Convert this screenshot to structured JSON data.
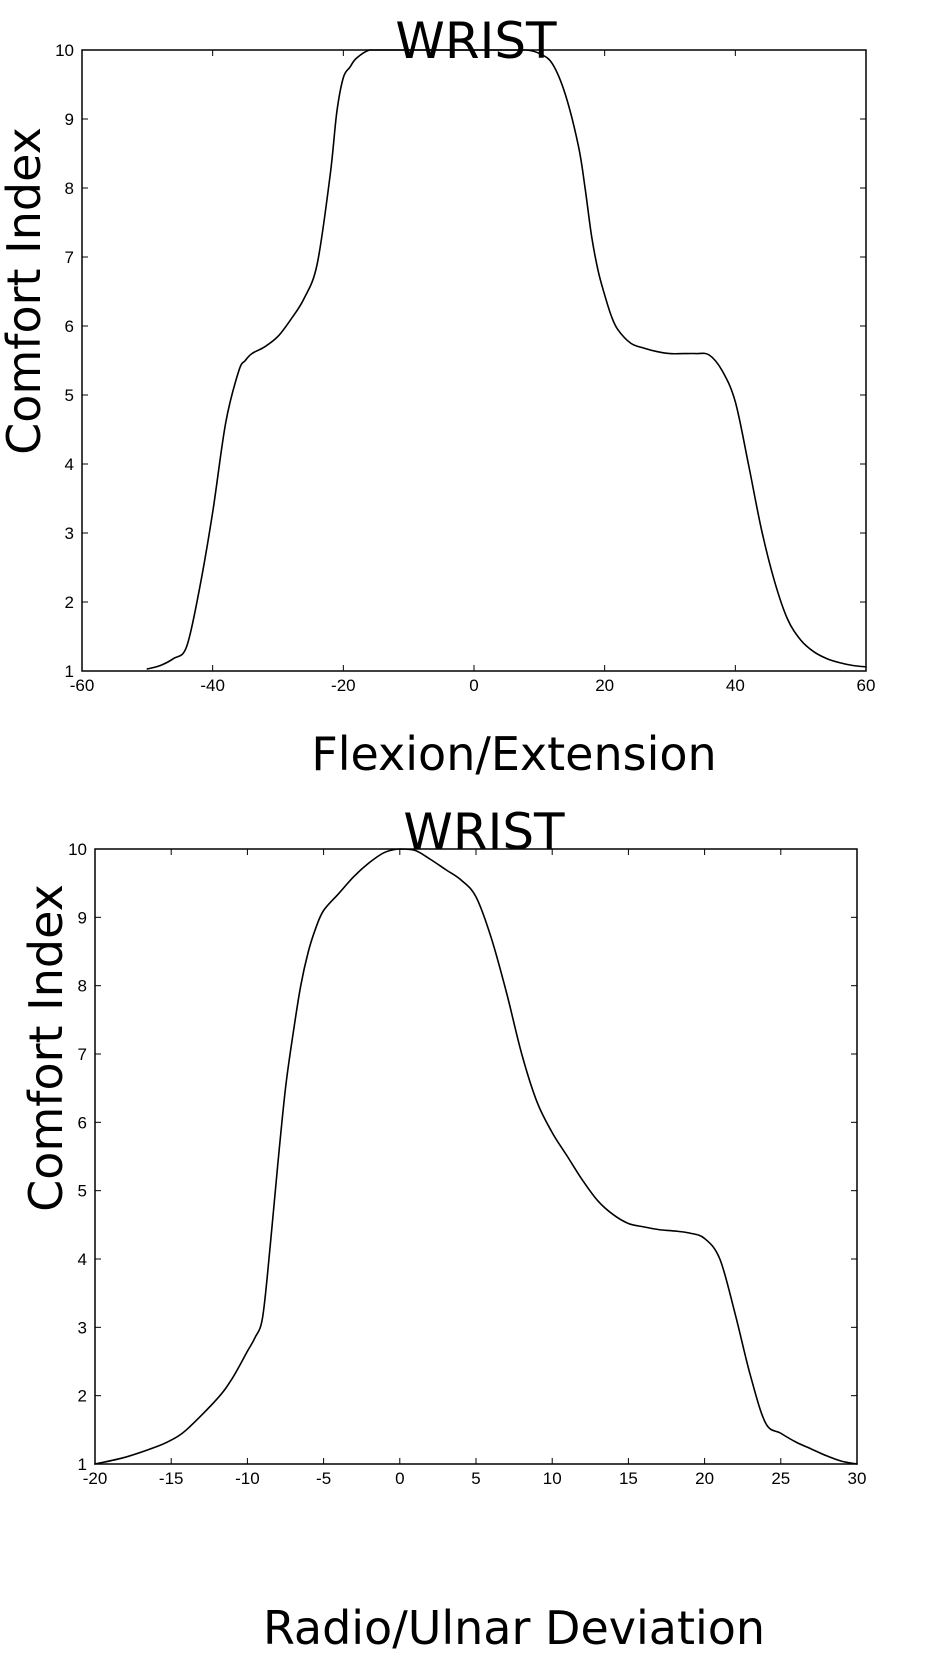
{
  "chart_data": [
    {
      "type": "line",
      "title": "WRIST",
      "xlabel": "Flexion/Extension",
      "ylabel": "Comfort Index",
      "xlim": [
        -60,
        60
      ],
      "ylim": [
        1,
        10
      ],
      "xticks": [
        -60,
        -40,
        -20,
        0,
        20,
        40,
        60
      ],
      "yticks": [
        1,
        2,
        3,
        4,
        5,
        6,
        7,
        8,
        9,
        10
      ],
      "grid": false,
      "line_color": "#000000",
      "series": [
        {
          "x": [
            -50,
            -48,
            -46,
            -44,
            -42,
            -40,
            -38,
            -36,
            -35,
            -34,
            -32,
            -30,
            -28,
            -26,
            -24,
            -22,
            -21,
            -20,
            -19,
            -18,
            -16,
            -14,
            -10,
            -5,
            0,
            5,
            8,
            10,
            12,
            14,
            16,
            17,
            18,
            19,
            20,
            21,
            22,
            24,
            26,
            28,
            30,
            32,
            34,
            36,
            38,
            40,
            42,
            44,
            46,
            48,
            50,
            52,
            54,
            56,
            58,
            60
          ],
          "y": [
            1.03,
            1.08,
            1.18,
            1.35,
            2.2,
            3.3,
            4.6,
            5.35,
            5.5,
            5.6,
            5.7,
            5.85,
            6.1,
            6.4,
            6.9,
            8.2,
            9.1,
            9.6,
            9.75,
            9.88,
            10,
            10,
            10,
            10,
            10,
            10,
            10,
            9.95,
            9.8,
            9.35,
            8.6,
            8.0,
            7.3,
            6.8,
            6.45,
            6.15,
            5.95,
            5.75,
            5.68,
            5.63,
            5.6,
            5.6,
            5.6,
            5.58,
            5.35,
            4.9,
            4.0,
            3.05,
            2.3,
            1.75,
            1.45,
            1.28,
            1.18,
            1.12,
            1.08,
            1.06
          ]
        }
      ]
    },
    {
      "type": "line",
      "title": "WRIST",
      "xlabel": "Radio/Ulnar Deviation",
      "ylabel": "Comfort Index",
      "xlim": [
        -20,
        30
      ],
      "ylim": [
        1,
        10
      ],
      "xticks": [
        -20,
        -15,
        -10,
        -5,
        0,
        5,
        10,
        15,
        20,
        25,
        30
      ],
      "yticks": [
        1,
        2,
        3,
        4,
        5,
        6,
        7,
        8,
        9,
        10
      ],
      "grid": false,
      "line_color": "#000000",
      "series": [
        {
          "x": [
            -20,
            -18,
            -16,
            -15,
            -14,
            -12,
            -11,
            -10,
            -9.5,
            -9,
            -8.5,
            -8,
            -7.5,
            -7,
            -6.5,
            -6,
            -5.5,
            -5,
            -4,
            -3,
            -2,
            -1,
            0,
            1,
            2,
            3,
            4,
            5,
            6,
            7,
            8,
            9,
            10,
            11,
            12,
            13,
            14,
            15,
            16,
            17,
            18,
            19,
            20,
            21,
            22,
            23,
            24,
            25,
            26,
            27,
            28,
            29,
            30
          ],
          "y": [
            1.0,
            1.1,
            1.25,
            1.35,
            1.5,
            1.95,
            2.25,
            2.65,
            2.85,
            3.15,
            4.2,
            5.4,
            6.5,
            7.3,
            8.0,
            8.5,
            8.85,
            9.1,
            9.35,
            9.6,
            9.8,
            9.95,
            10.0,
            9.98,
            9.85,
            9.7,
            9.55,
            9.3,
            8.7,
            7.9,
            7.0,
            6.3,
            5.85,
            5.5,
            5.15,
            4.85,
            4.65,
            4.52,
            4.47,
            4.43,
            4.41,
            4.38,
            4.3,
            4.0,
            3.2,
            2.3,
            1.6,
            1.45,
            1.32,
            1.22,
            1.12,
            1.04,
            1.0
          ]
        }
      ]
    }
  ]
}
